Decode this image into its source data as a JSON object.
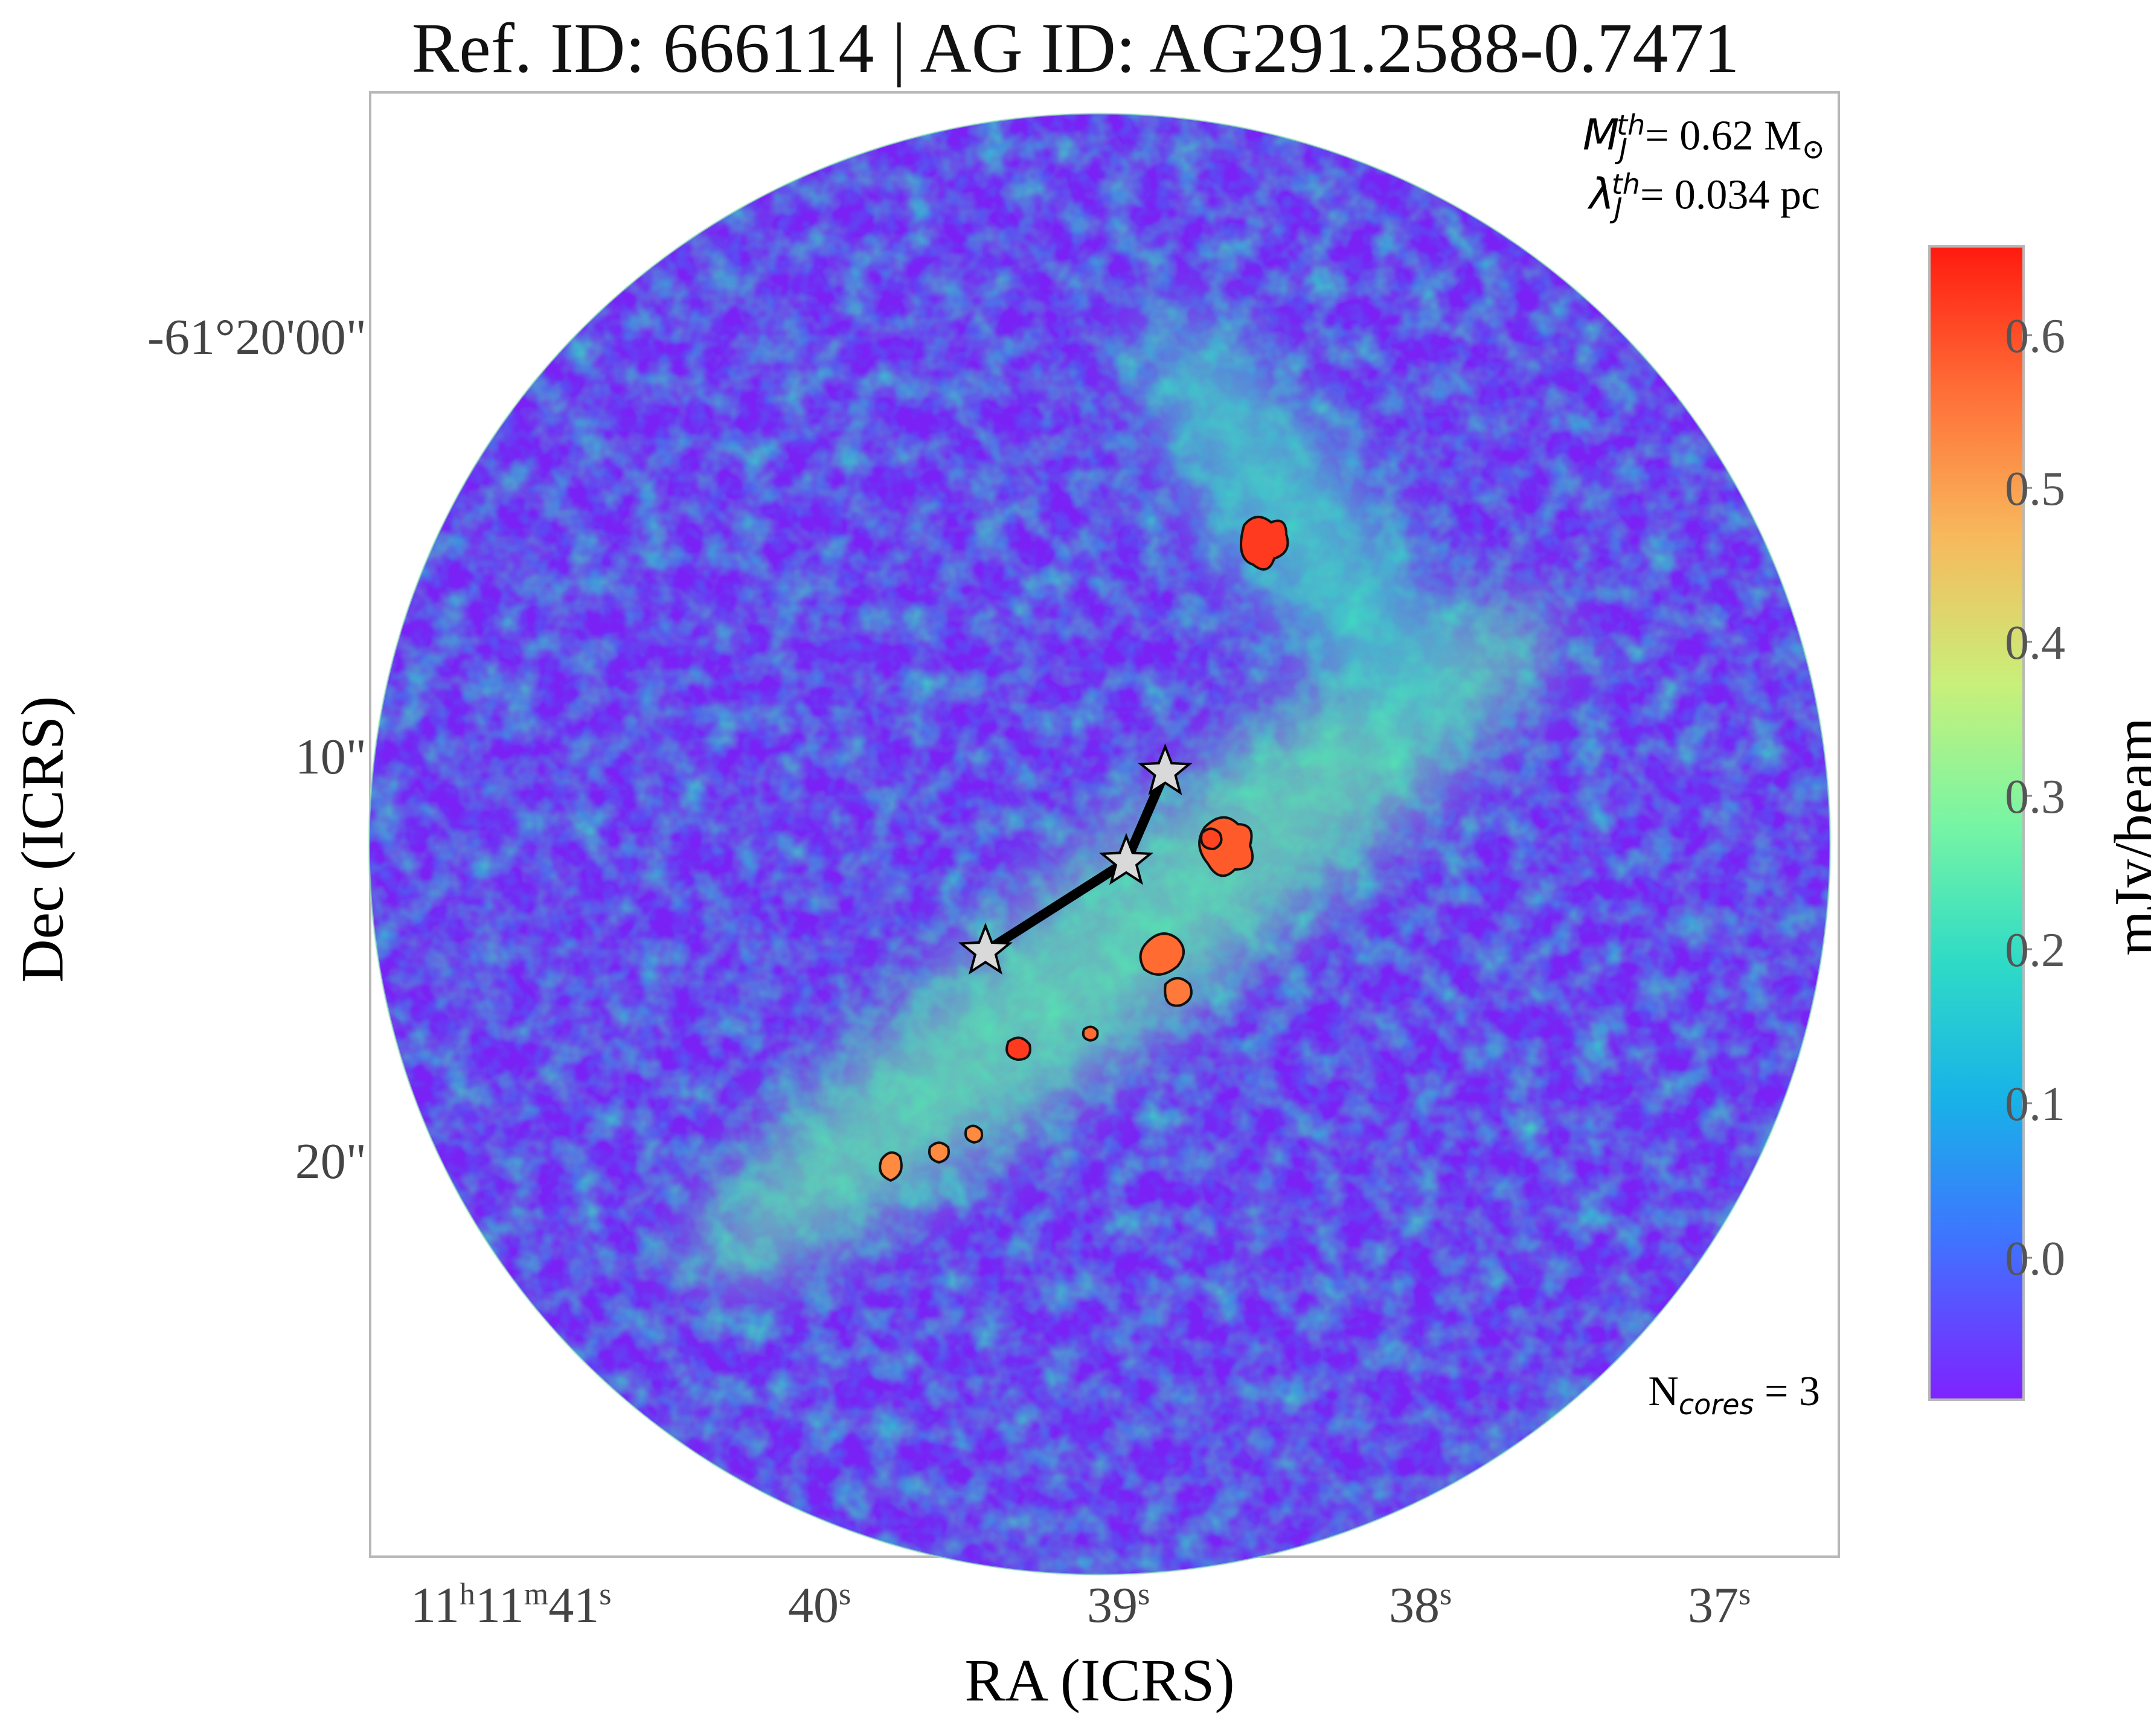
{
  "title": "Ref. ID: 666114 | AG ID: AG291.2588-0.7471",
  "annotations": {
    "mass_symbol": "M",
    "mass_sub": "J",
    "mass_sup": "th",
    "mass_text": "= 0.62 M",
    "mass_unit_symbol": "⊙",
    "length_symbol": "λ",
    "length_sub": "J",
    "length_sup": "th",
    "length_text": "= 0.034 pc",
    "cores_prefix": "N",
    "cores_sub": "cores",
    "cores_text": " = 3"
  },
  "axes": {
    "xlabel": "RA (ICRS)",
    "ylabel": "Dec (ICRS)",
    "x_ticks": [
      {
        "h": "11",
        "h_unit": "h",
        "m": "11",
        "m_unit": "m",
        "s": "41",
        "s_unit": "s"
      },
      {
        "s": "40",
        "s_unit": "s"
      },
      {
        "s": "39",
        "s_unit": "s"
      },
      {
        "s": "38",
        "s_unit": "s"
      },
      {
        "s": "37",
        "s_unit": "s"
      }
    ],
    "y_ticks": [
      "-61°20'00\"",
      "10\"",
      "20\""
    ]
  },
  "colorbar": {
    "label": "mJy/beam",
    "ticks": [
      "0.6",
      "0.5",
      "0.4",
      "0.3",
      "0.2",
      "0.1",
      "0.0"
    ],
    "colors": [
      "#ff1a0f",
      "#ff7a3d",
      "#f5c36b",
      "#c2f57d",
      "#74f5a6",
      "#30dcc4",
      "#1ab4e6",
      "#3f7dff",
      "#6a4cff",
      "#7d2bff"
    ]
  },
  "map": {
    "background_color": "#7a22f5",
    "cores": [
      {
        "ra_s": 39.47,
        "dec_arcsec": 15.0
      },
      {
        "ra_s": 39.0,
        "dec_arcsec": 12.8
      },
      {
        "ra_s": 38.87,
        "dec_arcsec": 10.6
      }
    ]
  }
}
